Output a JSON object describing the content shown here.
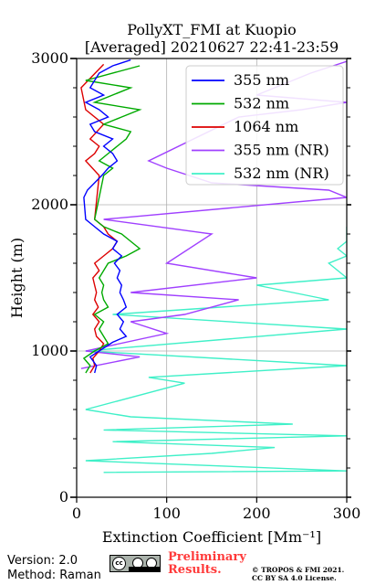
{
  "chart_data": {
    "type": "line",
    "title": "PollyXT_FMI at Kuopio",
    "subtitle": "[Averaged] 20210627 22:41-23:59",
    "xlabel": "Extinction Coefficient [Mm⁻¹]",
    "ylabel": "Height (m)",
    "xlim": [
      0,
      300
    ],
    "ylim": [
      0,
      3000
    ],
    "xticks": [
      "0",
      "100",
      "200",
      "300"
    ],
    "yticks": [
      "0",
      "1000",
      "2000",
      "3000"
    ],
    "grid": true,
    "legend_position": "top-right",
    "series": [
      {
        "name": "355 nm",
        "color": "#0000ff",
        "points": [
          [
            20,
            850
          ],
          [
            22,
            900
          ],
          [
            15,
            960
          ],
          [
            25,
            1000
          ],
          [
            40,
            1060
          ],
          [
            55,
            1100
          ],
          [
            48,
            1150
          ],
          [
            52,
            1200
          ],
          [
            45,
            1250
          ],
          [
            55,
            1300
          ],
          [
            52,
            1350
          ],
          [
            48,
            1400
          ],
          [
            50,
            1450
          ],
          [
            45,
            1500
          ],
          [
            48,
            1550
          ],
          [
            42,
            1600
          ],
          [
            50,
            1650
          ],
          [
            40,
            1700
          ],
          [
            45,
            1750
          ],
          [
            30,
            1800
          ],
          [
            20,
            1850
          ],
          [
            10,
            1900
          ],
          [
            8,
            2050
          ],
          [
            12,
            2100
          ],
          [
            20,
            2150
          ],
          [
            28,
            2200
          ],
          [
            35,
            2250
          ],
          [
            45,
            2300
          ],
          [
            40,
            2350
          ],
          [
            30,
            2400
          ],
          [
            40,
            2450
          ],
          [
            20,
            2500
          ],
          [
            15,
            2550
          ],
          [
            35,
            2600
          ],
          [
            25,
            2650
          ],
          [
            10,
            2700
          ],
          [
            30,
            2750
          ],
          [
            15,
            2800
          ],
          [
            20,
            2850
          ],
          [
            25,
            2900
          ],
          [
            40,
            2950
          ],
          [
            60,
            2990
          ]
        ]
      },
      {
        "name": "532 nm",
        "color": "#00aa00",
        "points": [
          [
            10,
            850
          ],
          [
            15,
            900
          ],
          [
            8,
            950
          ],
          [
            20,
            1000
          ],
          [
            35,
            1050
          ],
          [
            30,
            1100
          ],
          [
            25,
            1150
          ],
          [
            30,
            1200
          ],
          [
            20,
            1250
          ],
          [
            35,
            1300
          ],
          [
            30,
            1350
          ],
          [
            28,
            1400
          ],
          [
            30,
            1450
          ],
          [
            25,
            1500
          ],
          [
            30,
            1550
          ],
          [
            35,
            1600
          ],
          [
            55,
            1650
          ],
          [
            70,
            1700
          ],
          [
            60,
            1750
          ],
          [
            50,
            1800
          ],
          [
            30,
            1850
          ],
          [
            20,
            1900
          ],
          [
            30,
            2200
          ],
          [
            40,
            2250
          ],
          [
            25,
            2300
          ],
          [
            35,
            2350
          ],
          [
            55,
            2450
          ],
          [
            60,
            2500
          ],
          [
            30,
            2550
          ],
          [
            50,
            2600
          ],
          [
            70,
            2650
          ],
          [
            20,
            2700
          ],
          [
            60,
            2800
          ],
          [
            10,
            2850
          ],
          [
            70,
            2950
          ]
        ]
      },
      {
        "name": "1064 nm",
        "color": "#dd0000",
        "points": [
          [
            15,
            850
          ],
          [
            20,
            900
          ],
          [
            18,
            950
          ],
          [
            25,
            1000
          ],
          [
            30,
            1050
          ],
          [
            22,
            1100
          ],
          [
            20,
            1150
          ],
          [
            25,
            1200
          ],
          [
            18,
            1250
          ],
          [
            24,
            1300
          ],
          [
            20,
            1350
          ],
          [
            22,
            1400
          ],
          [
            20,
            1450
          ],
          [
            18,
            1500
          ],
          [
            25,
            1550
          ],
          [
            20,
            1600
          ],
          [
            30,
            1650
          ],
          [
            40,
            1700
          ],
          [
            45,
            1750
          ],
          [
            35,
            1800
          ],
          [
            30,
            1850
          ],
          [
            20,
            1900
          ],
          [
            25,
            2200
          ],
          [
            10,
            2300
          ],
          [
            20,
            2350
          ],
          [
            25,
            2400
          ],
          [
            15,
            2450
          ],
          [
            30,
            2550
          ],
          [
            10,
            2650
          ],
          [
            5,
            2800
          ],
          [
            30,
            2960
          ]
        ]
      },
      {
        "name": "355 nm (NR)",
        "color": "#a040ff",
        "points": [
          [
            5,
            880
          ],
          [
            70,
            960
          ],
          [
            10,
            1000
          ],
          [
            100,
            1120
          ],
          [
            60,
            1200
          ],
          [
            120,
            1250
          ],
          [
            180,
            1350
          ],
          [
            60,
            1400
          ],
          [
            200,
            1500
          ],
          [
            100,
            1600
          ],
          [
            150,
            1800
          ],
          [
            30,
            1900
          ],
          [
            300,
            2050
          ],
          [
            280,
            2100
          ],
          [
            150,
            2150
          ],
          [
            100,
            2250
          ],
          [
            80,
            2300
          ],
          [
            180,
            2600
          ],
          [
            250,
            2650
          ],
          [
            300,
            2700
          ],
          [
            200,
            2750
          ],
          [
            260,
            2900
          ],
          [
            300,
            2980
          ]
        ]
      },
      {
        "name": "532 nm (NR)",
        "color": "#40f0c8",
        "points": [
          [
            30,
            170
          ],
          [
            300,
            180
          ],
          [
            10,
            250
          ],
          [
            150,
            300
          ],
          [
            220,
            340
          ],
          [
            40,
            380
          ],
          [
            300,
            420
          ],
          [
            30,
            460
          ],
          [
            240,
            500
          ],
          [
            60,
            550
          ],
          [
            10,
            600
          ],
          [
            120,
            780
          ],
          [
            80,
            820
          ],
          [
            300,
            900
          ],
          [
            10,
            1000
          ],
          [
            300,
            1150
          ],
          [
            40,
            1250
          ],
          [
            280,
            1350
          ],
          [
            200,
            1450
          ],
          [
            300,
            1500
          ],
          [
            280,
            1600
          ],
          [
            300,
            1650
          ],
          [
            290,
            1700
          ],
          [
            300,
            1750
          ],
          [
            300,
            1850
          ]
        ]
      }
    ]
  },
  "footer": {
    "version": "Version: 2.0",
    "method": "Method: Raman",
    "cc_label": "cc",
    "preliminary_line1": "Preliminary",
    "preliminary_line2": "Results.",
    "copyright_line1": "© TROPOS & FMI 2021.",
    "copyright_line2": "CC BY SA 4.0 License."
  }
}
